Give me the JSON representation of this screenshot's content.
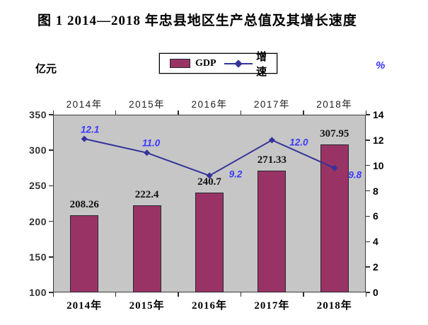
{
  "title": "图 1  2014—2018 年忠县地区生产总值及其增长速度",
  "legend": {
    "gdp_label": "GDP",
    "growth_label": "增速"
  },
  "axes": {
    "left_unit": "亿元",
    "right_unit": "%",
    "left_ticks": [
      "350",
      "300",
      "250",
      "200",
      "150",
      "100"
    ],
    "right_ticks": [
      "14",
      "12",
      "10",
      "8",
      "6",
      "4",
      "2",
      "0"
    ]
  },
  "chart_data": {
    "type": "bar+line",
    "title": "图 1  2014—2018 年忠县地区生产总值及其增长速度",
    "categories": [
      "2014年",
      "2015年",
      "2016年",
      "2017年",
      "2018年"
    ],
    "series": [
      {
        "name": "GDP",
        "type": "bar",
        "axis": "left",
        "values": [
          208.26,
          222.4,
          240.7,
          271.33,
          307.95
        ],
        "labels": [
          "208.26",
          "222.4",
          "240.7",
          "271.33",
          "307.95"
        ],
        "color": "#993366"
      },
      {
        "name": "增速",
        "type": "line",
        "axis": "right",
        "values": [
          12.1,
          11.0,
          9.2,
          12.0,
          9.8
        ],
        "labels": [
          "12.1",
          "11.0",
          "9.2",
          "12.0",
          "9.8"
        ],
        "color": "#333399"
      }
    ],
    "left_axis": {
      "label": "亿元",
      "min": 100,
      "max": 350,
      "step": 50
    },
    "right_axis": {
      "label": "%",
      "min": 0,
      "max": 14,
      "step": 2
    },
    "legend_position": "top",
    "grid": false,
    "plot_background": "#c6c6c6"
  },
  "colors": {
    "bar_fill": "#993366",
    "bar_border": "#26262e",
    "line": "#333399",
    "line_label": "#3b3bff",
    "right_axis_accent": "#3333ff",
    "plot_background": "#c6c6c6"
  }
}
